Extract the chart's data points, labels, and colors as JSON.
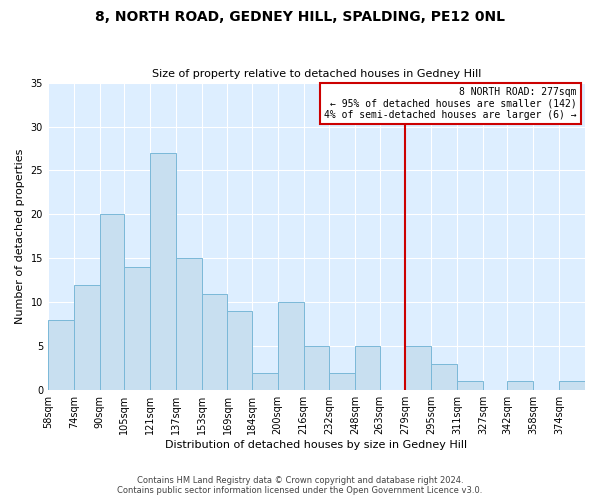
{
  "title": "8, NORTH ROAD, GEDNEY HILL, SPALDING, PE12 0NL",
  "subtitle": "Size of property relative to detached houses in Gedney Hill",
  "xlabel": "Distribution of detached houses by size in Gedney Hill",
  "ylabel": "Number of detached properties",
  "bar_color": "#c8dff0",
  "bar_edge_color": "#7ab8d8",
  "ax_facecolor": "#ddeeff",
  "bin_labels": [
    "58sqm",
    "74sqm",
    "90sqm",
    "105sqm",
    "121sqm",
    "137sqm",
    "153sqm",
    "169sqm",
    "184sqm",
    "200sqm",
    "216sqm",
    "232sqm",
    "248sqm",
    "263sqm",
    "279sqm",
    "295sqm",
    "311sqm",
    "327sqm",
    "342sqm",
    "358sqm",
    "374sqm"
  ],
  "bin_edges": [
    58,
    74,
    90,
    105,
    121,
    137,
    153,
    169,
    184,
    200,
    216,
    232,
    248,
    263,
    279,
    295,
    311,
    327,
    342,
    358,
    374
  ],
  "bin_width": 16,
  "counts": [
    8,
    12,
    20,
    14,
    27,
    15,
    11,
    9,
    2,
    10,
    5,
    2,
    5,
    0,
    5,
    3,
    1,
    0,
    1,
    0,
    1
  ],
  "ylim": [
    0,
    35
  ],
  "yticks": [
    0,
    5,
    10,
    15,
    20,
    25,
    30,
    35
  ],
  "vline_x": 279,
  "vline_color": "#cc0000",
  "annotation_title": "8 NORTH ROAD: 277sqm",
  "annotation_line1": "← 95% of detached houses are smaller (142)",
  "annotation_line2": "4% of semi-detached houses are larger (6) →",
  "annotation_box_facecolor": "#ffffff",
  "annotation_box_edgecolor": "#cc0000",
  "footer_line1": "Contains HM Land Registry data © Crown copyright and database right 2024.",
  "footer_line2": "Contains public sector information licensed under the Open Government Licence v3.0.",
  "background_color": "#ffffff",
  "grid_color": "#ffffff",
  "title_fontsize": 10,
  "subtitle_fontsize": 8,
  "xlabel_fontsize": 8,
  "ylabel_fontsize": 8,
  "tick_fontsize": 7,
  "footer_fontsize": 6
}
